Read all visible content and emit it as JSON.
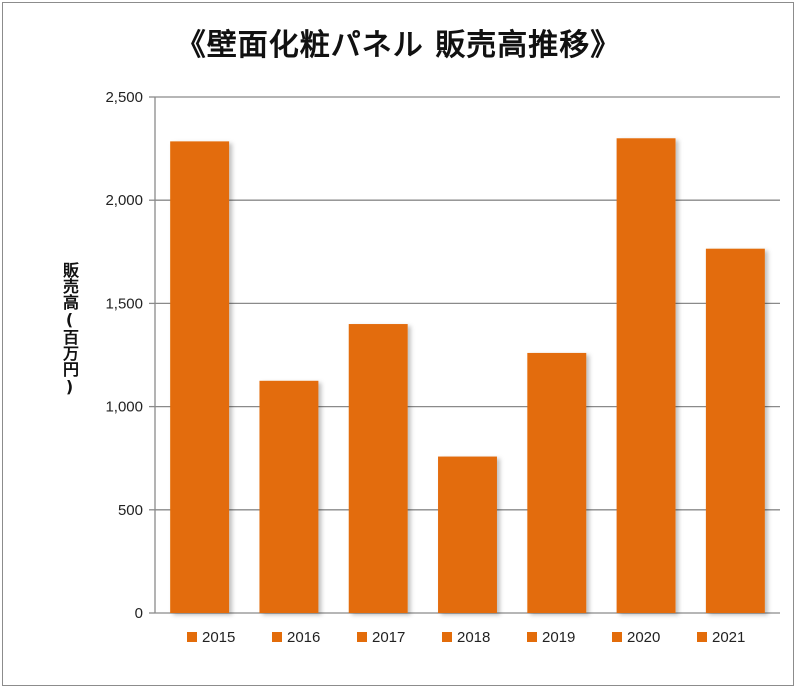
{
  "chart_data": {
    "type": "bar",
    "title": "《壁面化粧パネル 販売高推移》",
    "ylabel": "販売高(百万円)",
    "xlabel": "",
    "ylim": [
      0,
      2500
    ],
    "yticks": [
      0,
      500,
      1000,
      1500,
      2000,
      2500
    ],
    "ytick_labels": [
      "0",
      "500",
      "1,000",
      "1,500",
      "2,000",
      "2,500"
    ],
    "grid": "horizontal",
    "legend_position": "bottom",
    "bar_color": "#e36c0a",
    "categories": [
      "2015",
      "2016",
      "2017",
      "2018",
      "2019",
      "2020",
      "2021"
    ],
    "values": [
      2285,
      1125,
      1400,
      758,
      1260,
      2300,
      1765
    ]
  }
}
